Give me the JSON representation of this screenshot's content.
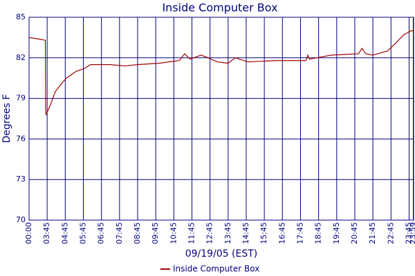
{
  "chart_data": {
    "type": "line",
    "title": "Inside Computer Box",
    "x_label": "09/19/05 (EST)",
    "y_label": "Degrees F",
    "series": [
      {
        "name": "Inside Computer Box",
        "color": "#a00000",
        "x": [
          0,
          0.5,
          0.9,
          0.92,
          0.95,
          1.2,
          1.45,
          1.8,
          2.06,
          2.6,
          3.05,
          3.4,
          4.5,
          5.3,
          6,
          7.2,
          8.3,
          8.6,
          8.9,
          9.5,
          9.9,
          10.4,
          11,
          11.4,
          12.1,
          13.7,
          15.3,
          15.4,
          15.5,
          16.7,
          18.2,
          18.4,
          18.6,
          19,
          19.8,
          20.2,
          20.7,
          21.1,
          21.25
        ],
        "values": [
          83.5,
          83.4,
          83.3,
          77.9,
          77.8,
          78.6,
          79.5,
          80.1,
          80.5,
          81.0,
          81.2,
          81.5,
          81.5,
          81.4,
          81.5,
          81.6,
          81.8,
          82.3,
          81.9,
          82.2,
          82.0,
          81.7,
          81.6,
          82.0,
          81.7,
          81.8,
          81.8,
          82.2,
          81.9,
          82.2,
          82.3,
          82.7,
          82.3,
          82.2,
          82.5,
          83.0,
          83.7,
          84.0,
          84.0
        ]
      }
    ],
    "xlim": [
      0,
      21.25
    ],
    "ylim": [
      70,
      85
    ],
    "yticks": [
      70,
      73,
      76,
      79,
      82,
      85
    ],
    "xticks": [
      {
        "value": 0,
        "label": "00:00"
      },
      {
        "value": 1,
        "label": "03:45"
      },
      {
        "value": 2,
        "label": "04:45"
      },
      {
        "value": 3,
        "label": "05:45"
      },
      {
        "value": 4,
        "label": "06:45"
      },
      {
        "value": 5,
        "label": "07:45"
      },
      {
        "value": 6,
        "label": "08:45"
      },
      {
        "value": 7,
        "label": "09:45"
      },
      {
        "value": 8,
        "label": "10:45"
      },
      {
        "value": 9,
        "label": "11:45"
      },
      {
        "value": 10,
        "label": "12:45"
      },
      {
        "value": 11,
        "label": "13:45"
      },
      {
        "value": 12,
        "label": "14:45"
      },
      {
        "value": 13,
        "label": "15:45"
      },
      {
        "value": 14,
        "label": "16:45"
      },
      {
        "value": 15,
        "label": "17:45"
      },
      {
        "value": 16,
        "label": "18:45"
      },
      {
        "value": 17,
        "label": "19:45"
      },
      {
        "value": 18,
        "label": "20:45"
      },
      {
        "value": 19,
        "label": "21:45"
      },
      {
        "value": 20,
        "label": "22:45"
      },
      {
        "value": 21,
        "label": "23:45"
      },
      {
        "value": 21.23,
        "label": "23:59"
      }
    ],
    "grid": true,
    "legend": "bottom"
  }
}
